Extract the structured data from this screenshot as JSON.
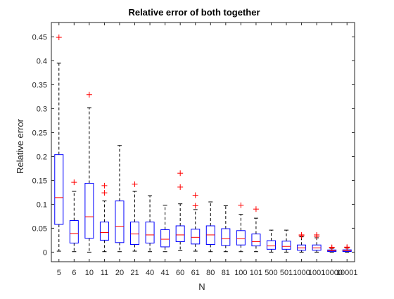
{
  "chart_data": {
    "type": "box",
    "title": "Relative error of both together",
    "xlabel": "N",
    "ylabel": "Relative error",
    "ylim": [
      -0.02,
      0.48
    ],
    "yticks": [
      0,
      0.05,
      0.1,
      0.15,
      0.2,
      0.25,
      0.3,
      0.35,
      0.4,
      0.45
    ],
    "ytick_labels": [
      "0",
      "0.05",
      "0.1",
      "0.15",
      "0.2",
      "0.25",
      "0.3",
      "0.35",
      "0.4",
      "0.45"
    ],
    "grid": false,
    "categories": [
      "5",
      "6",
      "10",
      "11",
      "20",
      "21",
      "40",
      "41",
      "60",
      "61",
      "80",
      "81",
      "100",
      "101",
      "500",
      "501",
      "1000",
      "1001",
      "10000",
      "10001"
    ],
    "boxes": [
      {
        "whisker_low": 0.002,
        "q1": 0.058,
        "median": 0.114,
        "q3": 0.204,
        "whisker_high": 0.395,
        "outliers": [
          0.449
        ]
      },
      {
        "whisker_low": 0.001,
        "q1": 0.019,
        "median": 0.039,
        "q3": 0.066,
        "whisker_high": 0.127,
        "outliers": [
          0.146
        ]
      },
      {
        "whisker_low": 0.0,
        "q1": 0.029,
        "median": 0.074,
        "q3": 0.144,
        "whisker_high": 0.302,
        "outliers": [
          0.329
        ]
      },
      {
        "whisker_low": 0.001,
        "q1": 0.025,
        "median": 0.041,
        "q3": 0.063,
        "whisker_high": 0.107,
        "outliers": [
          0.124,
          0.139
        ]
      },
      {
        "whisker_low": 0.001,
        "q1": 0.02,
        "median": 0.054,
        "q3": 0.107,
        "whisker_high": 0.223,
        "outliers": []
      },
      {
        "whisker_low": 0.002,
        "q1": 0.016,
        "median": 0.038,
        "q3": 0.063,
        "whisker_high": 0.127,
        "outliers": [
          0.142
        ]
      },
      {
        "whisker_low": 0.001,
        "q1": 0.019,
        "median": 0.036,
        "q3": 0.063,
        "whisker_high": 0.118,
        "outliers": []
      },
      {
        "whisker_low": 0.001,
        "q1": 0.011,
        "median": 0.027,
        "q3": 0.047,
        "whisker_high": 0.098,
        "outliers": []
      },
      {
        "whisker_low": 0.003,
        "q1": 0.022,
        "median": 0.036,
        "q3": 0.055,
        "whisker_high": 0.101,
        "outliers": [
          0.136,
          0.165
        ]
      },
      {
        "whisker_low": 0.002,
        "q1": 0.017,
        "median": 0.031,
        "q3": 0.048,
        "whisker_high": 0.089,
        "outliers": [
          0.097,
          0.119
        ]
      },
      {
        "whisker_low": 0.001,
        "q1": 0.016,
        "median": 0.036,
        "q3": 0.055,
        "whisker_high": 0.105,
        "outliers": []
      },
      {
        "whisker_low": 0.001,
        "q1": 0.014,
        "median": 0.028,
        "q3": 0.049,
        "whisker_high": 0.097,
        "outliers": []
      },
      {
        "whisker_low": 0.001,
        "q1": 0.015,
        "median": 0.028,
        "q3": 0.045,
        "whisker_high": 0.079,
        "outliers": [
          0.098
        ]
      },
      {
        "whisker_low": 0.001,
        "q1": 0.013,
        "median": 0.022,
        "q3": 0.038,
        "whisker_high": 0.071,
        "outliers": [
          0.09
        ]
      },
      {
        "whisker_low": 0.0,
        "q1": 0.006,
        "median": 0.013,
        "q3": 0.024,
        "whisker_high": 0.046,
        "outliers": []
      },
      {
        "whisker_low": 0.0,
        "q1": 0.006,
        "median": 0.012,
        "q3": 0.023,
        "whisker_high": 0.046,
        "outliers": []
      },
      {
        "whisker_low": 0.0,
        "q1": 0.004,
        "median": 0.009,
        "q3": 0.015,
        "whisker_high": 0.032,
        "outliers": [
          0.034,
          0.036
        ]
      },
      {
        "whisker_low": 0.0,
        "q1": 0.004,
        "median": 0.009,
        "q3": 0.015,
        "whisker_high": 0.03,
        "outliers": [
          0.033,
          0.036
        ]
      },
      {
        "whisker_low": 0.0,
        "q1": 0.0012,
        "median": 0.0028,
        "q3": 0.0046,
        "whisker_high": 0.008,
        "outliers": [
          0.009,
          0.01
        ]
      },
      {
        "whisker_low": 0.0,
        "q1": 0.0013,
        "median": 0.003,
        "q3": 0.0048,
        "whisker_high": 0.0085,
        "outliers": [
          0.0095,
          0.0105
        ]
      }
    ],
    "colors": {
      "box": "#0000ff",
      "median": "#ff0000",
      "whisker": "#000000",
      "outlier": "#ff0000",
      "axis": "#262626",
      "tick_text": "#262626"
    }
  }
}
